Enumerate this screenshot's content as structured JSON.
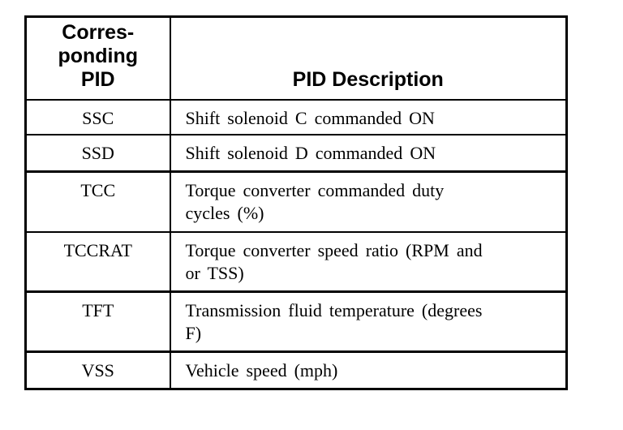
{
  "colors": {
    "background": "#ffffff",
    "text": "#000000",
    "border": "#000000"
  },
  "table": {
    "header": {
      "corresponding_pid": "Corres-\nponding\nPID",
      "pid_description": "PID Description"
    },
    "rows": [
      {
        "pid": "SSC",
        "description": "Shift solenoid C commanded ON"
      },
      {
        "pid": "SSD",
        "description": "Shift solenoid D commanded ON"
      },
      {
        "pid": "TCC",
        "description": "Torque converter commanded duty\ncycles (%)"
      },
      {
        "pid": "TCCRAT",
        "description": "Torque converter speed ratio (RPM and\nor TSS)"
      },
      {
        "pid": "TFT",
        "description": "Transmission fluid temperature (degrees\nF)"
      },
      {
        "pid": "VSS",
        "description": "Vehicle speed (mph)"
      }
    ]
  }
}
